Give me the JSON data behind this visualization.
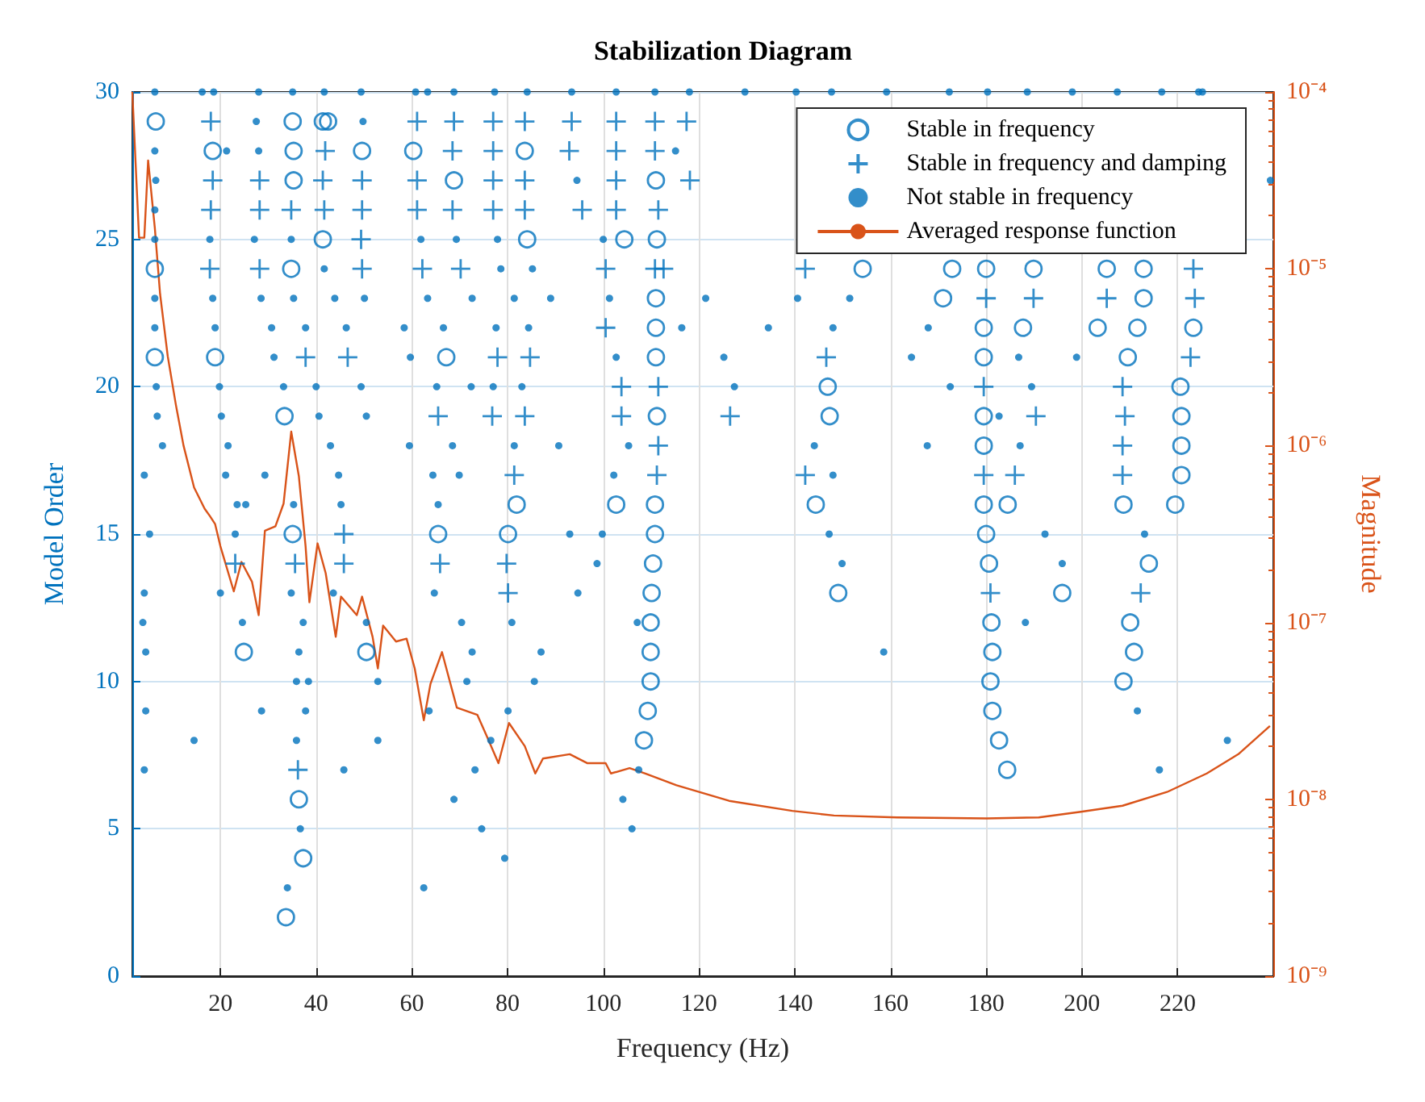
{
  "chart_data": {
    "type": "scatter",
    "title": "Stabilization Diagram",
    "xlabel": "Frequency (Hz)",
    "ylabel": "Model Order",
    "y2label": "Magnitude",
    "xlim": [
      1.6,
      240
    ],
    "xticks": [
      20,
      40,
      60,
      80,
      100,
      120,
      140,
      160,
      180,
      200,
      220
    ],
    "ylim": [
      0,
      30
    ],
    "yticks": [
      0,
      5,
      10,
      15,
      20,
      25,
      30
    ],
    "y2lim": [
      1e-09,
      0.0001
    ],
    "y2ticks": [
      {
        "value": 1e-09,
        "label": "10⁻⁹"
      },
      {
        "value": 1e-08,
        "label": "10⁻⁸"
      },
      {
        "value": 1e-07,
        "label": "10⁻⁷"
      },
      {
        "value": 1e-06,
        "label": "10⁻⁶"
      },
      {
        "value": 1e-05,
        "label": "10⁻⁵"
      },
      {
        "value": 0.0001,
        "label": "10⁻⁴"
      }
    ],
    "log": "y2",
    "grid": true,
    "legend": "top right",
    "series": [
      {
        "name": "Stable in frequency",
        "color": "#0072bd",
        "marker": "circle",
        "x": [
          6.5,
          35.1,
          41.4,
          42.5,
          18.4,
          35.3,
          49.6,
          60.3,
          83.6,
          35.3,
          68.8,
          111,
          41.4,
          84.1,
          104.4,
          111.2,
          6.3,
          34.8,
          154.2,
          172.9,
          180,
          189.9,
          205.2,
          212.9,
          111,
          171,
          212.9,
          111,
          179.5,
          187.7,
          203.3,
          211.6,
          223.3,
          6.3,
          18.9,
          67.2,
          111,
          179.5,
          209.6,
          146.9,
          220.6,
          33.4,
          111.2,
          147.3,
          179.5,
          220.8,
          179.5,
          220.8,
          220.8,
          81.9,
          102.7,
          110.8,
          144.4,
          179.5,
          184.5,
          208.7,
          219.5,
          35.1,
          65.5,
          80.1,
          110.8,
          180,
          110.4,
          180.6,
          214,
          110.1,
          149.1,
          195.9,
          109.9,
          181.1,
          210.1,
          24.9,
          50.5,
          109.9,
          181.3,
          210.9,
          109.9,
          180.9,
          208.7,
          109.3,
          181.3,
          108.5,
          182.7,
          184.4,
          36.4,
          37.3,
          33.7
        ],
        "values": [
          29,
          29,
          29,
          29,
          28,
          28,
          28,
          28,
          28,
          27,
          27,
          27,
          25,
          25,
          25,
          25,
          24,
          24,
          24,
          24,
          24,
          24,
          24,
          24,
          23,
          23,
          23,
          22,
          22,
          22,
          22,
          22,
          22,
          21,
          21,
          21,
          21,
          21,
          21,
          20,
          20,
          19,
          19,
          19,
          19,
          19,
          18,
          18,
          17,
          16,
          16,
          16,
          16,
          16,
          16,
          16,
          16,
          15,
          15,
          15,
          15,
          15,
          14,
          14,
          14,
          13,
          13,
          13,
          12,
          12,
          12,
          11,
          11,
          11,
          11,
          11,
          10,
          10,
          10,
          9,
          9,
          8,
          8,
          7,
          6,
          4,
          2
        ]
      },
      {
        "name": "Stable in frequency and damping",
        "color": "#0072bd",
        "marker": "cross",
        "x": [
          18,
          61.1,
          68.8,
          77,
          83.6,
          93.4,
          102.7,
          110.8,
          117.4,
          41.9,
          68.5,
          77,
          92.9,
          102.7,
          110.8,
          18.4,
          28.2,
          41.4,
          49.6,
          61.1,
          77,
          83.6,
          102.7,
          118.1,
          18,
          28.2,
          34.8,
          41.7,
          49.6,
          61.1,
          68.5,
          77,
          83.6,
          95.6,
          102.7,
          111.5,
          49.4,
          17.8,
          28.2,
          49.6,
          62.2,
          70.2,
          100.5,
          110.8,
          112.6,
          142.2,
          223.3,
          180,
          189.9,
          205.2,
          223.6,
          100.5,
          37.8,
          46.6,
          77.9,
          84.7,
          146.6,
          222.7,
          103.8,
          111.5,
          179.5,
          208.5,
          65.5,
          76.8,
          83.6,
          103.8,
          126.5,
          190.4,
          209,
          111.5,
          208.5,
          81.4,
          111.2,
          142.2,
          179.5,
          186,
          208.5,
          45.8,
          23.1,
          35.6,
          45.8,
          65.9,
          79.8,
          80.1,
          180.9,
          212.3,
          36.2
        ],
        "values": [
          29,
          29,
          29,
          29,
          29,
          29,
          29,
          29,
          29,
          28,
          28,
          28,
          28,
          28,
          28,
          27,
          27,
          27,
          27,
          27,
          27,
          27,
          27,
          27,
          26,
          26,
          26,
          26,
          26,
          26,
          26,
          26,
          26,
          26,
          26,
          26,
          25,
          24,
          24,
          24,
          24,
          24,
          24,
          24,
          24,
          24,
          24,
          23,
          23,
          23,
          23,
          22,
          21,
          21,
          21,
          21,
          21,
          21,
          20,
          20,
          20,
          20,
          19,
          19,
          19,
          19,
          19,
          19,
          19,
          18,
          18,
          17,
          17,
          17,
          17,
          17,
          17,
          15,
          14,
          14,
          14,
          14,
          14,
          13,
          13,
          13,
          7
        ]
      },
      {
        "name": "Not stable in frequency",
        "color": "#0072bd",
        "marker": "point",
        "x": [
          6.3,
          16.2,
          18.6,
          28,
          35.1,
          41.7,
          49.4,
          60.8,
          63.3,
          68.8,
          77.3,
          84.1,
          93.4,
          102.7,
          110.8,
          118,
          129.6,
          140.3,
          147.7,
          159.2,
          172.3,
          180.3,
          188.6,
          198,
          207.4,
          216.7,
          224.4,
          225.2,
          27.5,
          49.8,
          6.3,
          21.3,
          28,
          115.1,
          6.5,
          94.5,
          239.4,
          6.3,
          6.3,
          17.8,
          27.1,
          34.8,
          61.9,
          69.3,
          77.9,
          100,
          41.7,
          78.6,
          85.2,
          6.3,
          18.4,
          28.5,
          35.3,
          43.9,
          50.1,
          63.3,
          72.6,
          81.4,
          89,
          101.3,
          121.4,
          140.6,
          151.5,
          6.3,
          18.9,
          30.7,
          37.8,
          46.3,
          58.4,
          66.6,
          77.6,
          84.4,
          116.4,
          134.5,
          148,
          167.9,
          31.2,
          59.7,
          102.7,
          125.2,
          164.4,
          186.8,
          198.9,
          6.6,
          19.8,
          33.2,
          40,
          49.4,
          65.2,
          72.4,
          77,
          83,
          127.4,
          172.5,
          189.5,
          6.8,
          20.2,
          40.6,
          50.5,
          182.7,
          7.9,
          21.6,
          43,
          59.5,
          68.5,
          81.4,
          90.7,
          105.3,
          144.1,
          167.7,
          187.1,
          4.1,
          21.1,
          29.3,
          44.7,
          64.4,
          69.9,
          102.2,
          148,
          23.5,
          25.3,
          35.3,
          45.2,
          65.5,
          5.2,
          23.1,
          93,
          99.8,
          147.2,
          192.3,
          213.1,
          98.7,
          149.9,
          195.9,
          4.1,
          20,
          34.8,
          43.6,
          64.7,
          94.7,
          3.8,
          24.6,
          37.3,
          50.5,
          70.4,
          80.9,
          107.1,
          188.2,
          4.4,
          36.4,
          72.6,
          87,
          158.6,
          35.9,
          38.4,
          52.9,
          71.5,
          85.6,
          4.4,
          28.6,
          37.8,
          63.6,
          80.1,
          211.6,
          14.5,
          35.9,
          52.9,
          76.5,
          230.4,
          4.1,
          45.8,
          73.2,
          107.4,
          216.2,
          68.8,
          104.1,
          36.7,
          74.6,
          106,
          79.4,
          34,
          62.5
        ],
        "values": [
          30,
          30,
          30,
          30,
          30,
          30,
          30,
          30,
          30,
          30,
          30,
          30,
          30,
          30,
          30,
          30,
          30,
          30,
          30,
          30,
          30,
          30,
          30,
          30,
          30,
          30,
          30,
          30,
          29,
          29,
          28,
          28,
          28,
          28,
          27,
          27,
          27,
          26,
          25,
          25,
          25,
          25,
          25,
          25,
          25,
          25,
          24,
          24,
          24,
          23,
          23,
          23,
          23,
          23,
          23,
          23,
          23,
          23,
          23,
          23,
          23,
          23,
          23,
          22,
          22,
          22,
          22,
          22,
          22,
          22,
          22,
          22,
          22,
          22,
          22,
          22,
          21,
          21,
          21,
          21,
          21,
          21,
          21,
          20,
          20,
          20,
          20,
          20,
          20,
          20,
          20,
          20,
          20,
          20,
          20,
          19,
          19,
          19,
          19,
          19,
          18,
          18,
          18,
          18,
          18,
          18,
          18,
          18,
          18,
          18,
          18,
          17,
          17,
          17,
          17,
          17,
          17,
          17,
          17,
          16,
          16,
          16,
          16,
          16,
          15,
          15,
          15,
          15,
          15,
          15,
          15,
          14,
          14,
          14,
          13,
          13,
          13,
          13,
          13,
          13,
          12,
          12,
          12,
          12,
          12,
          12,
          12,
          12,
          11,
          11,
          11,
          11,
          11,
          10,
          10,
          10,
          10,
          10,
          9,
          9,
          9,
          9,
          9,
          9,
          8,
          8,
          8,
          8,
          8,
          7,
          7,
          7,
          7,
          7,
          6,
          6,
          5,
          5,
          5,
          4,
          3,
          3
        ]
      },
      {
        "name": "Averaged response function",
        "color": "#d95319",
        "type": "line",
        "axis": "y2",
        "x": [
          1.6,
          3,
          4.1,
          4.9,
          6.3,
          7.4,
          9,
          10.7,
          12.3,
          14.5,
          16.7,
          17.8,
          18.9,
          20,
          22.8,
          24.4,
          26.6,
          28,
          29.3,
          31.5,
          33.2,
          34.8,
          36.4,
          37.8,
          38.6,
          40.3,
          42,
          44.1,
          45.2,
          48.5,
          49.6,
          51.8,
          52.9,
          54,
          56.7,
          58.9,
          60.6,
          62.5,
          63.9,
          66.3,
          69.4,
          73.7,
          75.9,
          78.1,
          80.3,
          83.6,
          85.8,
          87.4,
          93,
          96.7,
          100.5,
          101.6,
          105.5,
          108.8,
          115.3,
          126.3,
          139.5,
          148.2,
          161.4,
          180.1,
          191,
          199.8,
          208.5,
          217.8,
          226.1,
          232.7,
          239.3
        ],
        "values": [
          0.0001,
          1.5e-05,
          1.5e-05,
          4.1e-05,
          1.7e-05,
          7.2e-06,
          3.2e-06,
          1.7e-06,
          1e-06,
          5.8e-07,
          4.4e-07,
          4e-07,
          3.6e-07,
          2.7e-07,
          1.5e-07,
          2.2e-07,
          1.7e-07,
          1.1e-07,
          3.3e-07,
          3.5e-07,
          4.7e-07,
          1.2e-06,
          6.7e-07,
          2.7e-07,
          1.3e-07,
          2.8e-07,
          1.9e-07,
          8.3e-08,
          1.4e-07,
          1.1e-07,
          1.4e-07,
          8.3e-08,
          5.5e-08,
          9.6e-08,
          7.8e-08,
          8.1e-08,
          5.5e-08,
          2.8e-08,
          4.5e-08,
          6.8e-08,
          3.3e-08,
          3e-08,
          2.2e-08,
          1.6e-08,
          2.7e-08,
          2e-08,
          1.4e-08,
          1.7e-08,
          1.8e-08,
          1.6e-08,
          1.6e-08,
          1.4e-08,
          1.5e-08,
          1.4e-08,
          1.2e-08,
          9.8e-09,
          8.6e-09,
          8.1e-09,
          7.9e-09,
          7.8e-09,
          7.9e-09,
          8.5e-09,
          9.2e-09,
          1.1e-08,
          1.4e-08,
          1.8e-08,
          2.6e-08
        ]
      }
    ]
  }
}
